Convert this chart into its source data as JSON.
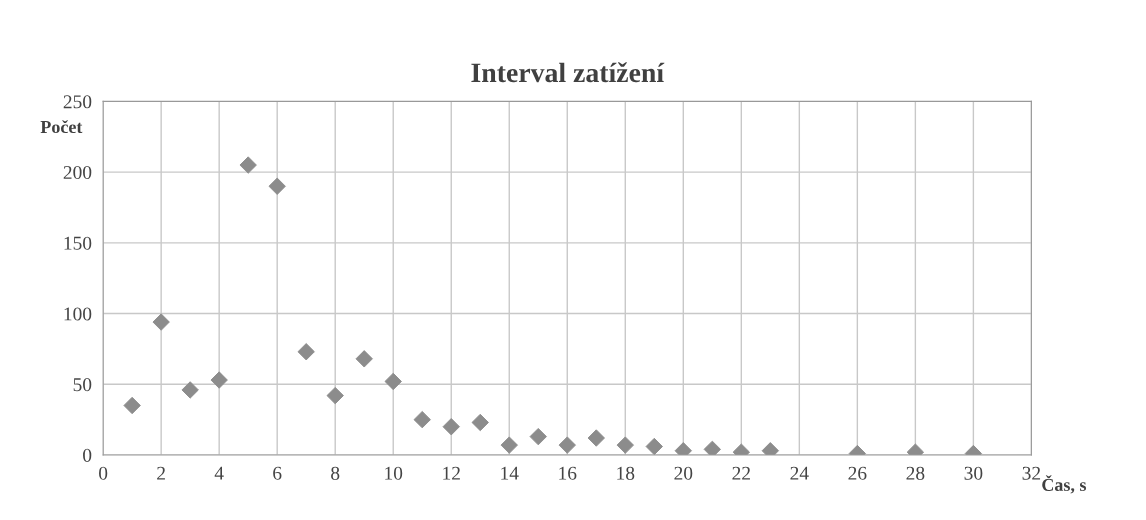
{
  "chart_data": {
    "type": "scatter",
    "title": "Interval zatížení",
    "xlabel": "Čas, s",
    "ylabel": "Počet",
    "x": [
      1,
      2,
      3,
      4,
      5,
      6,
      7,
      8,
      9,
      10,
      11,
      12,
      13,
      14,
      15,
      16,
      17,
      18,
      19,
      20,
      21,
      22,
      23,
      26,
      28,
      30
    ],
    "series": [
      {
        "color": "#8c8c8c",
        "values": [
          35,
          94,
          46,
          53,
          205,
          190,
          73,
          42,
          68,
          52,
          25,
          20,
          23,
          7,
          13,
          7,
          12,
          7,
          6,
          3,
          4,
          2,
          3,
          1,
          2,
          1
        ]
      }
    ],
    "marker": "diamond",
    "grid": true,
    "xlim": [
      0,
      32
    ],
    "xticks": [
      0,
      2,
      4,
      6,
      8,
      10,
      12,
      14,
      16,
      18,
      20,
      22,
      24,
      26,
      28,
      30,
      32
    ],
    "ylim": [
      0,
      250
    ],
    "yticks": [
      0,
      50,
      100,
      150,
      200,
      250
    ]
  }
}
